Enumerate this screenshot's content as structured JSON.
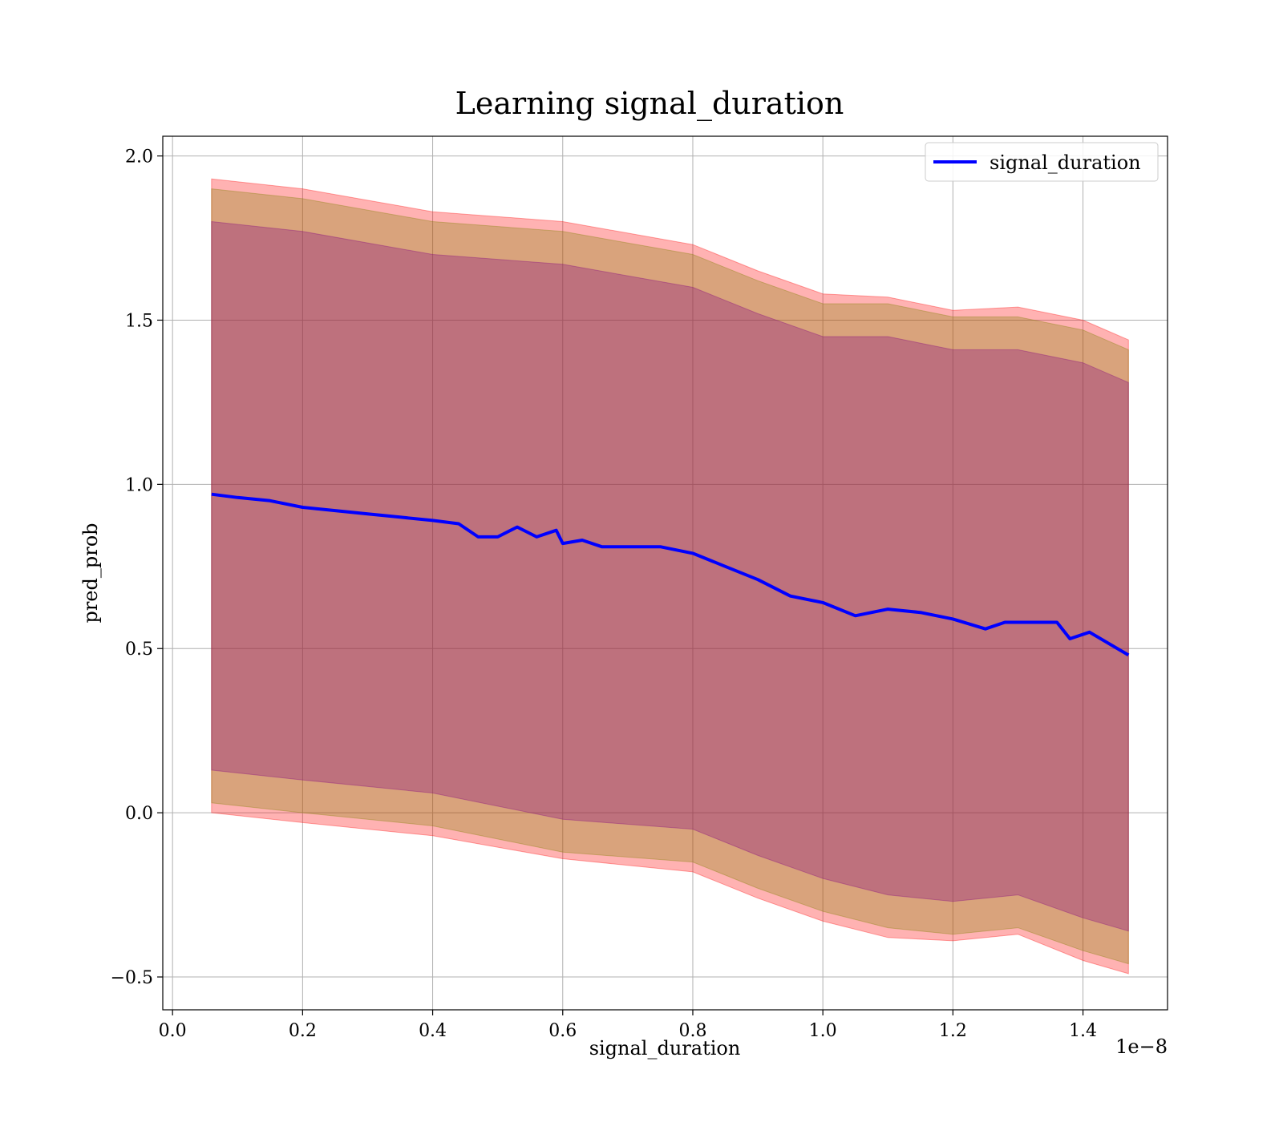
{
  "chart_data": {
    "type": "line",
    "title": "Learning signal_duration",
    "xlabel": "signal_duration",
    "ylabel": "pred_prob",
    "x_offset_label": "1e−8",
    "xlim": [
      -0.015,
      1.53
    ],
    "ylim": [
      -0.6,
      2.06
    ],
    "x_ticks": [
      {
        "value": 0.0,
        "label": "0.0"
      },
      {
        "value": 0.2,
        "label": "0.2"
      },
      {
        "value": 0.4,
        "label": "0.4"
      },
      {
        "value": 0.6,
        "label": "0.6"
      },
      {
        "value": 0.8,
        "label": "0.8"
      },
      {
        "value": 1.0,
        "label": "1.0"
      },
      {
        "value": 1.2,
        "label": "1.2"
      },
      {
        "value": 1.4,
        "label": "1.4"
      }
    ],
    "y_ticks": [
      {
        "value": -0.5,
        "label": "−0.5"
      },
      {
        "value": 0.0,
        "label": "0.0"
      },
      {
        "value": 0.5,
        "label": "0.5"
      },
      {
        "value": 1.0,
        "label": "1.0"
      },
      {
        "value": 1.5,
        "label": "1.5"
      },
      {
        "value": 2.0,
        "label": "2.0"
      }
    ],
    "grid": true,
    "legend_position": "top-right",
    "series": [
      {
        "name": "signal_duration",
        "color": "#0000ff",
        "x": [
          0.06,
          0.1,
          0.15,
          0.2,
          0.25,
          0.3,
          0.35,
          0.4,
          0.44,
          0.47,
          0.5,
          0.53,
          0.56,
          0.59,
          0.6,
          0.63,
          0.66,
          0.7,
          0.75,
          0.8,
          0.85,
          0.9,
          0.95,
          1.0,
          1.05,
          1.1,
          1.15,
          1.2,
          1.25,
          1.28,
          1.32,
          1.36,
          1.38,
          1.41,
          1.47
        ],
        "y": [
          0.97,
          0.96,
          0.95,
          0.93,
          0.92,
          0.91,
          0.9,
          0.89,
          0.88,
          0.84,
          0.84,
          0.87,
          0.84,
          0.86,
          0.82,
          0.83,
          0.81,
          0.81,
          0.81,
          0.79,
          0.75,
          0.71,
          0.66,
          0.64,
          0.6,
          0.62,
          0.61,
          0.59,
          0.56,
          0.58,
          0.58,
          0.58,
          0.53,
          0.55,
          0.48
        ]
      }
    ],
    "bands": [
      {
        "color": "#ff0000",
        "opacity": 0.3,
        "x": [
          0.06,
          0.2,
          0.4,
          0.6,
          0.8,
          0.9,
          1.0,
          1.1,
          1.2,
          1.3,
          1.4,
          1.47
        ],
        "upper": [
          1.93,
          1.9,
          1.83,
          1.8,
          1.73,
          1.65,
          1.58,
          1.57,
          1.53,
          1.54,
          1.5,
          1.44
        ],
        "lower": [
          0.0,
          -0.03,
          -0.07,
          -0.14,
          -0.18,
          -0.26,
          -0.33,
          -0.38,
          -0.39,
          -0.37,
          -0.45,
          -0.49
        ]
      },
      {
        "color": "#808000",
        "opacity": 0.3,
        "x": [
          0.06,
          0.2,
          0.4,
          0.6,
          0.8,
          0.9,
          1.0,
          1.1,
          1.2,
          1.3,
          1.4,
          1.47
        ],
        "upper": [
          1.9,
          1.87,
          1.8,
          1.77,
          1.7,
          1.62,
          1.55,
          1.55,
          1.51,
          1.51,
          1.47,
          1.41
        ],
        "lower": [
          0.03,
          0.0,
          -0.04,
          -0.12,
          -0.15,
          -0.23,
          -0.3,
          -0.35,
          -0.37,
          -0.35,
          -0.42,
          -0.46
        ]
      },
      {
        "color": "#800080",
        "opacity": 0.3,
        "x": [
          0.06,
          0.2,
          0.4,
          0.6,
          0.8,
          0.9,
          1.0,
          1.1,
          1.2,
          1.3,
          1.4,
          1.47
        ],
        "upper": [
          1.8,
          1.77,
          1.7,
          1.67,
          1.6,
          1.52,
          1.45,
          1.45,
          1.41,
          1.41,
          1.37,
          1.31
        ],
        "lower": [
          0.13,
          0.1,
          0.06,
          -0.02,
          -0.05,
          -0.13,
          -0.2,
          -0.25,
          -0.27,
          -0.25,
          -0.32,
          -0.36
        ]
      }
    ]
  }
}
